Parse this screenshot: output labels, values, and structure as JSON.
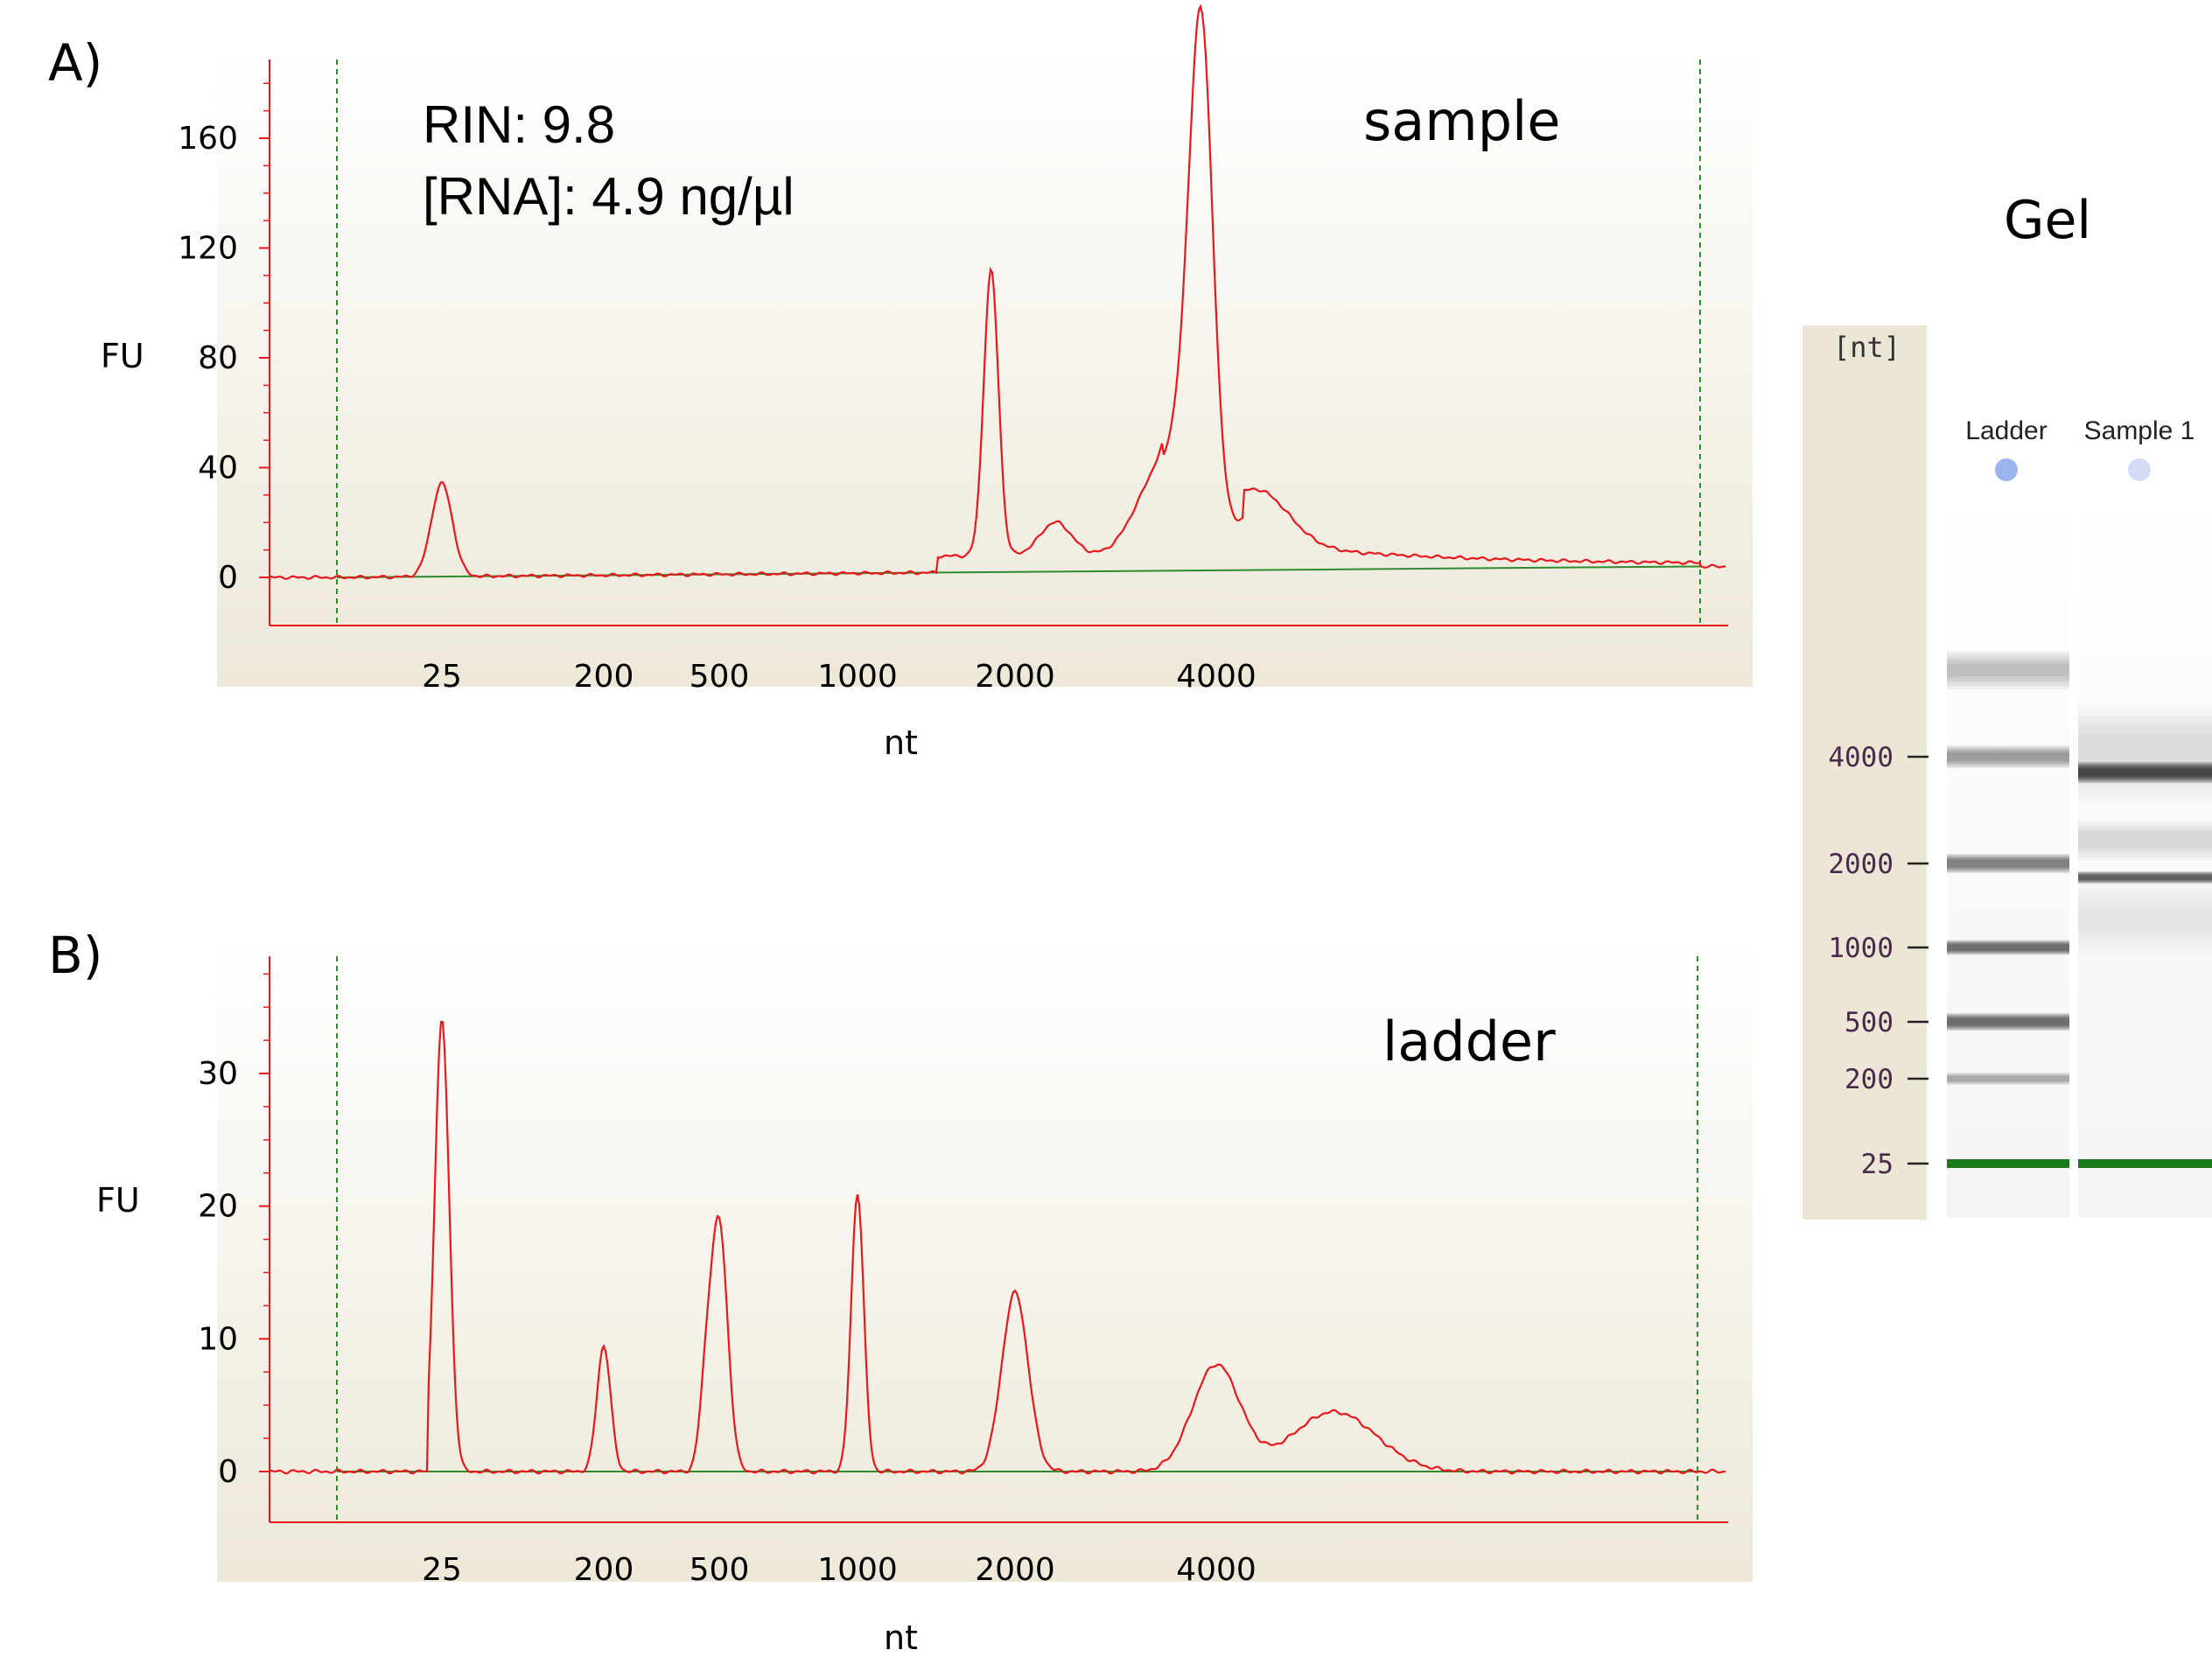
{
  "panels": {
    "a": {
      "label": "A)",
      "annotation_line1": "RIN: 9.8",
      "annotation_line2": "[RNA]: 4.9 ng/µl",
      "corner_label": "sample"
    },
    "b": {
      "label": "B)",
      "corner_label": "ladder"
    }
  },
  "gel": {
    "title": "Gel",
    "unit": "[nt]",
    "lane_labels": [
      "Ladder",
      "Sample 1"
    ],
    "ticks": [
      "4000",
      "2000",
      "1000",
      "500",
      "200",
      "25"
    ],
    "marker_color": "#1a7a1a"
  },
  "colors": {
    "trace": "#e8181c",
    "baseline": "#2e8b2e",
    "plot_bg_top": "#ffffff",
    "plot_bg_bottom": "#ede8d8",
    "gel_panel": "#ece6d6"
  },
  "chart_data": [
    {
      "type": "line",
      "title": "",
      "xlabel": "nt",
      "ylabel": "FU",
      "x_scale": "size ladder (non-linear)",
      "x_ticks": [
        "25",
        "200",
        "500",
        "1000",
        "2000",
        "4000"
      ],
      "y_ticks": [
        "0",
        "40",
        "80",
        "120",
        "160"
      ],
      "ylim": [
        -15,
        190
      ],
      "grid": false,
      "series": [
        {
          "name": "sample",
          "peaks": [
            {
              "x": 25,
              "y": 34,
              "width": 0.2
            },
            {
              "x": 1800,
              "y": 104,
              "width": 0.14
            },
            {
              "x": 2300,
              "y": 12,
              "width": 0.3
            },
            {
              "x": 3200,
              "y": 22,
              "width": 0.4
            },
            {
              "x": 3800,
              "y": 168,
              "width": 0.22
            },
            {
              "x": 3600,
              "y": 45,
              "width": 0.35
            },
            {
              "x": 4600,
              "y": 20,
              "width": 0.6
            }
          ],
          "baseline_start": 0,
          "baseline_end": 4
        }
      ]
    },
    {
      "type": "line",
      "title": "",
      "xlabel": "nt",
      "ylabel": "FU",
      "x_scale": "size ladder (non-linear)",
      "x_ticks": [
        "25",
        "200",
        "500",
        "1000",
        "2000",
        "4000"
      ],
      "y_ticks": [
        "0",
        "10",
        "20",
        "30"
      ],
      "ylim": [
        -3.5,
        38
      ],
      "grid": false,
      "series": [
        {
          "name": "ladder",
          "peaks": [
            {
              "x": 25,
              "y": 34,
              "width": 0.14
            },
            {
              "x": 200,
              "y": 9.5,
              "width": 0.13
            },
            {
              "x": 450,
              "y": 5.5,
              "width": 0.12
            },
            {
              "x": 500,
              "y": 18.5,
              "width": 0.16
            },
            {
              "x": 1000,
              "y": 21,
              "width": 0.12
            },
            {
              "x": 2000,
              "y": 13.5,
              "width": 0.25
            },
            {
              "x": 4000,
              "y": 8,
              "width": 0.45
            },
            {
              "x": 6000,
              "y": 4.5,
              "width": 0.8
            }
          ],
          "baseline_start": 0,
          "baseline_end": 0
        }
      ]
    }
  ]
}
